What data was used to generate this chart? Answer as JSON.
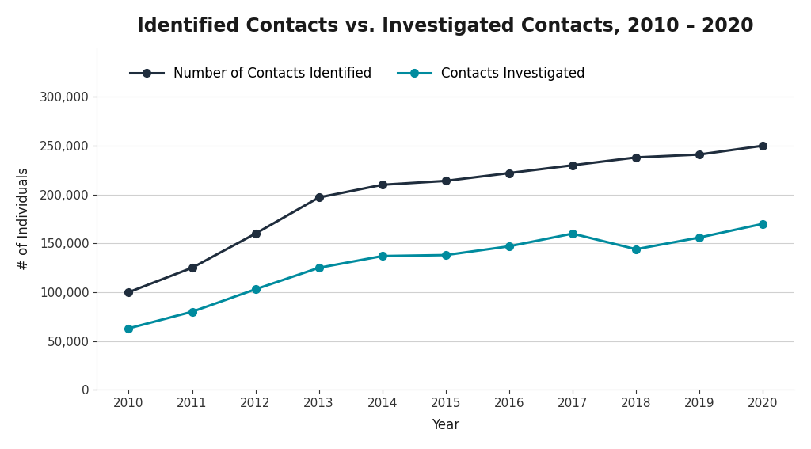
{
  "title": "Identified Contacts vs. Investigated Contacts, 2010 – 2020",
  "xlabel": "Year",
  "ylabel": "# of Individuals",
  "years": [
    2010,
    2011,
    2012,
    2013,
    2014,
    2015,
    2016,
    2017,
    2018,
    2019,
    2020
  ],
  "identified": [
    100000,
    125000,
    160000,
    197000,
    210000,
    214000,
    222000,
    230000,
    238000,
    241000,
    250000
  ],
  "investigated": [
    63000,
    80000,
    103000,
    125000,
    137000,
    138000,
    147000,
    160000,
    144000,
    156000,
    170000
  ],
  "identified_color": "#1f2d3d",
  "investigated_color": "#008b9e",
  "identified_label": "Number of Contacts Identified",
  "investigated_label": "Contacts Investigated",
  "ylim": [
    0,
    350000
  ],
  "yticks": [
    0,
    50000,
    100000,
    150000,
    200000,
    250000,
    300000
  ],
  "background_color": "#ffffff",
  "grid_color": "#d0d0d0",
  "title_fontsize": 17,
  "label_fontsize": 12,
  "tick_fontsize": 11,
  "legend_fontsize": 12,
  "linewidth": 2.2,
  "markersize": 7
}
